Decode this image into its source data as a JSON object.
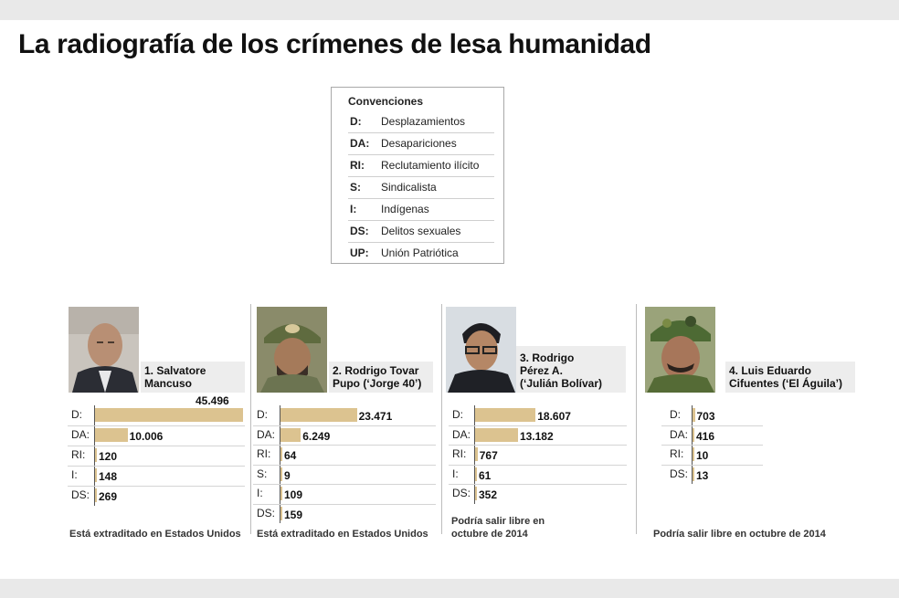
{
  "title": "La radiografía de los crímenes de lesa humanidad",
  "legend": {
    "heading": "Convenciones",
    "items": [
      {
        "code": "D:",
        "label": "Desplazamientos"
      },
      {
        "code": "DA:",
        "label": "Desapariciones"
      },
      {
        "code": "RI:",
        "label": "Reclutamiento ilícito"
      },
      {
        "code": "S:",
        "label": "Sindicalista"
      },
      {
        "code": "I:",
        "label": "Indígenas"
      },
      {
        "code": "DS:",
        "label": "Delitos sexuales"
      },
      {
        "code": "UP:",
        "label": "Unión Patriótica"
      }
    ]
  },
  "colors": {
    "bar": "#dcc390",
    "name_box": "#ededed",
    "background": "#e9e9e9"
  },
  "chart_data": [
    {
      "type": "bar",
      "name": "1. Salvatore\nMancuso",
      "categories": [
        "D:",
        "DA:",
        "RI:",
        "I:",
        "DS:"
      ],
      "values": [
        45496,
        10006,
        120,
        148,
        269
      ],
      "value_labels": [
        "45.496",
        "10.006",
        "120",
        "148",
        "269"
      ],
      "note": "Está extraditado en Estados Unidos"
    },
    {
      "type": "bar",
      "name": "2. Rodrigo Tovar\nPupo (‘Jorge 40’)",
      "categories": [
        "D:",
        "DA:",
        "RI:",
        "S:",
        "I:",
        "DS:"
      ],
      "values": [
        23471,
        6249,
        64,
        9,
        109,
        159
      ],
      "value_labels": [
        "23.471",
        "6.249",
        "64",
        "9",
        "109",
        "159"
      ],
      "note": "Está extraditado en Estados Unidos"
    },
    {
      "type": "bar",
      "name": "3. Rodrigo\nPérez A.\n(‘Julián Bolívar)",
      "categories": [
        "D:",
        "DA:",
        "RI:",
        "I:",
        "DS:"
      ],
      "values": [
        18607,
        13182,
        767,
        61,
        352
      ],
      "value_labels": [
        "18.607",
        "13.182",
        "767",
        "61",
        "352"
      ],
      "note": "Podría salir libre en\noctubre de 2014"
    },
    {
      "type": "bar",
      "name": "4. Luis Eduardo\nCifuentes (‘El Águila’)",
      "categories": [
        "D:",
        "DA:",
        "RI:",
        "DS:"
      ],
      "values": [
        703,
        416,
        10,
        13
      ],
      "value_labels": [
        "703",
        "416",
        "10",
        "13"
      ],
      "note": "Podría salir libre en octubre de 2014"
    }
  ]
}
